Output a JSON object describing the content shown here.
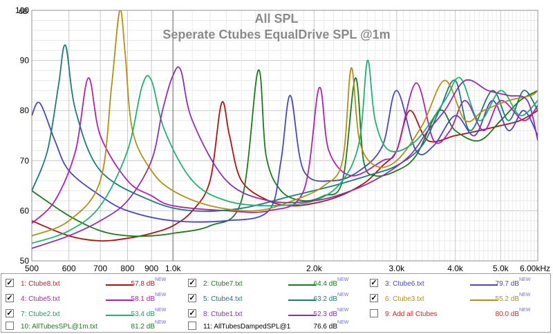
{
  "title": "All SPL",
  "subtitle": "Seperate Ctubes EqualDrive SPL @1m",
  "chart_data": {
    "type": "line",
    "ylabel": "dB",
    "ylim": [
      50,
      100
    ],
    "xlim": [
      500,
      6000
    ],
    "x_scale": "log",
    "y_ticks": [
      "100",
      "90",
      "80",
      "70",
      "60",
      "50"
    ],
    "x_ticks": [
      {
        "value": 500,
        "label": "500"
      },
      {
        "value": 600,
        "label": "600"
      },
      {
        "value": 700,
        "label": "700"
      },
      {
        "value": 800,
        "label": "800"
      },
      {
        "value": 900,
        "label": "900"
      },
      {
        "value": 1000,
        "label": "1.0k"
      },
      {
        "value": 2000,
        "label": "2.0k"
      },
      {
        "value": 3000,
        "label": "3.0k"
      },
      {
        "value": 4000,
        "label": "4.0k"
      },
      {
        "value": 5000,
        "label": "5.0k"
      },
      {
        "value": 6000,
        "label": "6.00kHz"
      }
    ],
    "grid": true,
    "series": [
      {
        "name": "Ctube8.txt",
        "color": "#b01010",
        "legend_value": "57.8 dB",
        "x": [
          500,
          600,
          700,
          800,
          900,
          1000,
          1100,
          1200,
          1270,
          1320,
          1400,
          1600,
          1800,
          2000,
          2200,
          2400,
          2600,
          2800,
          3000,
          3200,
          3500,
          4000,
          4500,
          5000,
          5500,
          6000
        ],
        "y": [
          58,
          55,
          54,
          54.5,
          55.5,
          57,
          60,
          66,
          81.5,
          75,
          66,
          62,
          61,
          61.5,
          62.5,
          64,
          66,
          69,
          72,
          80,
          74,
          75,
          76,
          77,
          78,
          80
        ]
      },
      {
        "name": "Ctube7.txt",
        "color": "#1a7a1a",
        "legend_value": "64.4 dB",
        "x": [
          500,
          600,
          700,
          800,
          900,
          1000,
          1200,
          1400,
          1520,
          1580,
          1700,
          1900,
          2100,
          2300,
          2450,
          2550,
          2700,
          3000,
          3300,
          3700,
          4000,
          4500,
          5000,
          5500,
          6000
        ],
        "y": [
          64,
          59,
          56,
          55,
          55,
          55.5,
          57,
          62,
          88,
          71,
          64,
          62,
          63,
          66,
          86.5,
          70,
          67,
          68,
          71,
          80,
          76,
          74,
          78,
          82,
          84
        ]
      },
      {
        "name": "Ctube6.txt",
        "color": "#4646c0",
        "legend_value": "79.7 dB",
        "x": [
          500,
          520,
          560,
          600,
          700,
          800,
          1000,
          1300,
          1600,
          1700,
          1780,
          1900,
          2200,
          2500,
          2800,
          3000,
          3300,
          3600,
          4000,
          4400,
          4800,
          5200,
          5600,
          6000
        ],
        "y": [
          79,
          81.5,
          74,
          68,
          63,
          60,
          58,
          58,
          60,
          70,
          83,
          68,
          66,
          68,
          73,
          84,
          72,
          73,
          79,
          75,
          82,
          76,
          80,
          75
        ]
      },
      {
        "name": "Ctube5.txt",
        "color": "#b020b0",
        "legend_value": "58.1 dB",
        "x": [
          500,
          560,
          620,
          660,
          700,
          800,
          900,
          1000,
          1300,
          1600,
          1900,
          2050,
          2150,
          2400,
          2800,
          3000,
          3300,
          3600,
          3900,
          4200,
          4600,
          5000,
          5600,
          6000
        ],
        "y": [
          57.5,
          62,
          72,
          86.5,
          75,
          66,
          63,
          61,
          60,
          60,
          64,
          84.5,
          72,
          67,
          70,
          72,
          85.5,
          74,
          76,
          82,
          76,
          82,
          78,
          81
        ]
      },
      {
        "name": "Ctube4.txt",
        "color": "#1a7a7a",
        "legend_value": "63.2 dB",
        "x": [
          500,
          540,
          570,
          590,
          620,
          700,
          900,
          1100,
          1400,
          1800,
          2200,
          2600,
          3000,
          3400,
          3700,
          4000,
          4300,
          4800,
          5200,
          5600,
          6000
        ],
        "y": [
          64,
          72,
          85,
          93,
          80,
          68,
          62,
          60,
          60.5,
          63,
          65,
          67,
          69,
          73,
          80,
          86,
          76,
          84,
          78,
          84,
          80
        ]
      },
      {
        "name": "Ctube3.txt",
        "color": "#b09010",
        "legend_value": "55.2 dB",
        "x": [
          500,
          600,
          700,
          740,
          770,
          790,
          820,
          900,
          1000,
          1200,
          1500,
          1800,
          2100,
          2300,
          2400,
          2500,
          2700,
          3000,
          3400,
          3800,
          4200,
          4600,
          5200,
          5800,
          6000
        ],
        "y": [
          55,
          58,
          66,
          85,
          100,
          92,
          76,
          68,
          64,
          61,
          60,
          62,
          65,
          70,
          88.5,
          74,
          69,
          70,
          77,
          86,
          78,
          80,
          82,
          83,
          84
        ]
      },
      {
        "name": "Ctube2.txt",
        "color": "#20b070",
        "legend_value": "53.4 dB",
        "x": [
          500,
          600,
          700,
          800,
          860,
          900,
          960,
          1100,
          1300,
          1600,
          2000,
          2300,
          2500,
          2600,
          2700,
          2900,
          3300,
          3800,
          4100,
          4500,
          5000,
          5500,
          6000
        ],
        "y": [
          53.5,
          56,
          61,
          72,
          85,
          86,
          76,
          66,
          62,
          61,
          62,
          66,
          74,
          90,
          78,
          72,
          74,
          82,
          86.5,
          78,
          84,
          79,
          82
        ]
      },
      {
        "name": "Ctube1.txt",
        "color": "#8a30b0",
        "legend_value": "52.3 dB",
        "x": [
          500,
          600,
          700,
          800,
          900,
          950,
          1000,
          1040,
          1100,
          1300,
          1600,
          2000,
          2400,
          2800,
          3200,
          3500,
          3800,
          4200,
          4700,
          5200,
          5700,
          6000
        ],
        "y": [
          52.5,
          55,
          58,
          62,
          70,
          80,
          87,
          88,
          78,
          66,
          62,
          62,
          64,
          67,
          71,
          76,
          80,
          86,
          84,
          83,
          82,
          74
        ]
      }
    ]
  },
  "legend": {
    "new_tag": "NEW",
    "items": [
      {
        "label": "1: Ctube8.txt",
        "value": "57.8 dB",
        "checked": true,
        "color": "#b01010",
        "text_color": "#c02020",
        "line": true
      },
      {
        "label": "2: Ctube7.txt",
        "value": "64.4 dB",
        "checked": true,
        "color": "#1a7a1a",
        "text_color": "#1a7a1a",
        "line": true
      },
      {
        "label": "3: Ctube6.txt",
        "value": "79.7 dB",
        "checked": true,
        "color": "#4646c0",
        "text_color": "#4646c0",
        "line": true
      },
      {
        "label": "4: Ctube5.txt",
        "value": "58.1 dB",
        "checked": true,
        "color": "#b020b0",
        "text_color": "#b020b0",
        "line": true
      },
      {
        "label": "5: Ctube4.txt",
        "value": "63.2 dB",
        "checked": true,
        "color": "#1a7a7a",
        "text_color": "#1a7a7a",
        "line": true
      },
      {
        "label": "6: Ctube3.txt",
        "value": "55.2 dB",
        "checked": true,
        "color": "#b09010",
        "text_color": "#b09010",
        "line": true
      },
      {
        "label": "7: Ctube2.txt",
        "value": "53.4 dB",
        "checked": true,
        "color": "#20b070",
        "text_color": "#20a060",
        "line": true
      },
      {
        "label": "8: Ctube1.txt",
        "value": "52.3 dB",
        "checked": true,
        "color": "#8a30b0",
        "text_color": "#8a30b0",
        "line": true
      },
      {
        "label": "9: Add all Ctubes",
        "value": "80.0 dB",
        "checked": false,
        "color": "#e02020",
        "text_color": "#e02020",
        "line": false
      },
      {
        "label": "10: AllTubesSPL@1m.txt",
        "value": "81.2 dB",
        "checked": false,
        "color": "#1a7a1a",
        "text_color": "#1a7a1a",
        "line": false
      },
      {
        "label": "11: AllTubesDampedSPL@1",
        "value": "76.6 dB",
        "checked": false,
        "color": "#000000",
        "text_color": "#000000",
        "line": false
      }
    ]
  }
}
